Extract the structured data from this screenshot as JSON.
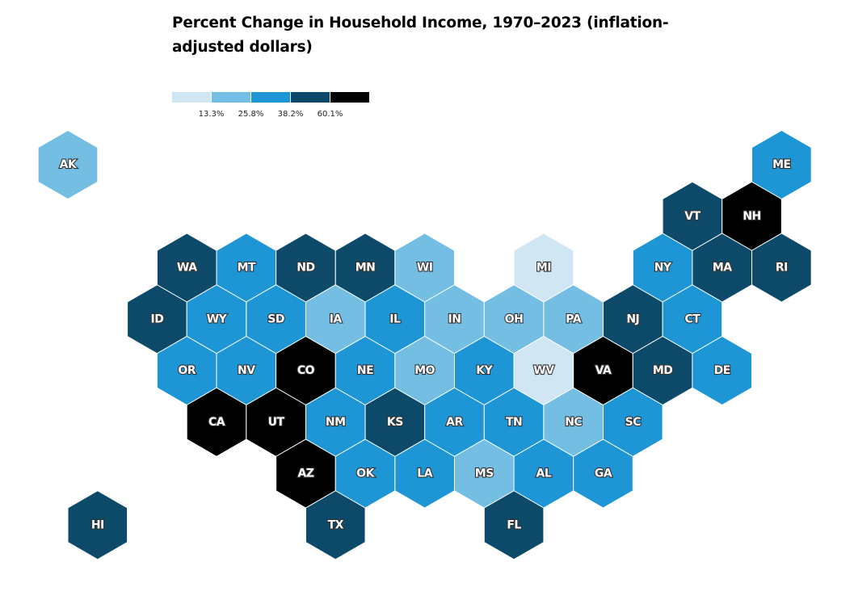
{
  "chart_data": {
    "type": "hex-tile-map",
    "title": "Percent Change in Household Income, 1970–2023 (inflation-adjusted dollars)",
    "legend": {
      "thresholds": [
        "13.3%",
        "25.8%",
        "38.2%",
        "60.1%"
      ],
      "colors": [
        "#d0e6f3",
        "#74bde3",
        "#1e96d6",
        "#0d4a6a",
        "#000000"
      ]
    },
    "states": [
      {
        "abbr": "AK",
        "col": 0,
        "row": 0,
        "bin": 1
      },
      {
        "abbr": "ME",
        "col": 12,
        "row": 0,
        "bin": 2
      },
      {
        "abbr": "VT",
        "col": 11,
        "row": 1,
        "bin": 3
      },
      {
        "abbr": "NH",
        "col": 12,
        "row": 1,
        "bin": 4
      },
      {
        "abbr": "WA",
        "col": 2,
        "row": 2,
        "bin": 3
      },
      {
        "abbr": "MT",
        "col": 3,
        "row": 2,
        "bin": 2
      },
      {
        "abbr": "ND",
        "col": 4,
        "row": 2,
        "bin": 3
      },
      {
        "abbr": "MN",
        "col": 5,
        "row": 2,
        "bin": 3
      },
      {
        "abbr": "WI",
        "col": 6,
        "row": 2,
        "bin": 1
      },
      {
        "abbr": "MI",
        "col": 8,
        "row": 2,
        "bin": 0
      },
      {
        "abbr": "NY",
        "col": 10,
        "row": 2,
        "bin": 2
      },
      {
        "abbr": "MA",
        "col": 11,
        "row": 2,
        "bin": 3
      },
      {
        "abbr": "RI",
        "col": 12,
        "row": 2,
        "bin": 3
      },
      {
        "abbr": "ID",
        "col": 2,
        "row": 3,
        "bin": 3
      },
      {
        "abbr": "WY",
        "col": 3,
        "row": 3,
        "bin": 2
      },
      {
        "abbr": "SD",
        "col": 4,
        "row": 3,
        "bin": 2
      },
      {
        "abbr": "IA",
        "col": 5,
        "row": 3,
        "bin": 1
      },
      {
        "abbr": "IL",
        "col": 6,
        "row": 3,
        "bin": 2
      },
      {
        "abbr": "IN",
        "col": 7,
        "row": 3,
        "bin": 1
      },
      {
        "abbr": "OH",
        "col": 8,
        "row": 3,
        "bin": 1
      },
      {
        "abbr": "PA",
        "col": 9,
        "row": 3,
        "bin": 1
      },
      {
        "abbr": "NJ",
        "col": 10,
        "row": 3,
        "bin": 3
      },
      {
        "abbr": "CT",
        "col": 11,
        "row": 3,
        "bin": 2
      },
      {
        "abbr": "OR",
        "col": 2,
        "row": 4,
        "bin": 2
      },
      {
        "abbr": "NV",
        "col": 3,
        "row": 4,
        "bin": 2
      },
      {
        "abbr": "CO",
        "col": 4,
        "row": 4,
        "bin": 4
      },
      {
        "abbr": "NE",
        "col": 5,
        "row": 4,
        "bin": 2
      },
      {
        "abbr": "MO",
        "col": 6,
        "row": 4,
        "bin": 1
      },
      {
        "abbr": "KY",
        "col": 7,
        "row": 4,
        "bin": 2
      },
      {
        "abbr": "WV",
        "col": 8,
        "row": 4,
        "bin": 0
      },
      {
        "abbr": "VA",
        "col": 9,
        "row": 4,
        "bin": 4
      },
      {
        "abbr": "MD",
        "col": 10,
        "row": 4,
        "bin": 3
      },
      {
        "abbr": "DE",
        "col": 11,
        "row": 4,
        "bin": 2
      },
      {
        "abbr": "CA",
        "col": 3,
        "row": 5,
        "bin": 4
      },
      {
        "abbr": "UT",
        "col": 4,
        "row": 5,
        "bin": 4
      },
      {
        "abbr": "NM",
        "col": 5,
        "row": 5,
        "bin": 2
      },
      {
        "abbr": "KS",
        "col": 6,
        "row": 5,
        "bin": 3
      },
      {
        "abbr": "AR",
        "col": 7,
        "row": 5,
        "bin": 2
      },
      {
        "abbr": "TN",
        "col": 8,
        "row": 5,
        "bin": 2
      },
      {
        "abbr": "NC",
        "col": 9,
        "row": 5,
        "bin": 1
      },
      {
        "abbr": "SC",
        "col": 10,
        "row": 5,
        "bin": 2
      },
      {
        "abbr": "AZ",
        "col": 4,
        "row": 6,
        "bin": 4
      },
      {
        "abbr": "OK",
        "col": 5,
        "row": 6,
        "bin": 2
      },
      {
        "abbr": "LA",
        "col": 6,
        "row": 6,
        "bin": 2
      },
      {
        "abbr": "MS",
        "col": 7,
        "row": 6,
        "bin": 1
      },
      {
        "abbr": "AL",
        "col": 8,
        "row": 6,
        "bin": 2
      },
      {
        "abbr": "GA",
        "col": 9,
        "row": 6,
        "bin": 2
      },
      {
        "abbr": "HI",
        "col": 1,
        "row": 7,
        "bin": 3
      },
      {
        "abbr": "TX",
        "col": 5,
        "row": 7,
        "bin": 3
      },
      {
        "abbr": "FL",
        "col": 8,
        "row": 7,
        "bin": 3
      }
    ]
  }
}
